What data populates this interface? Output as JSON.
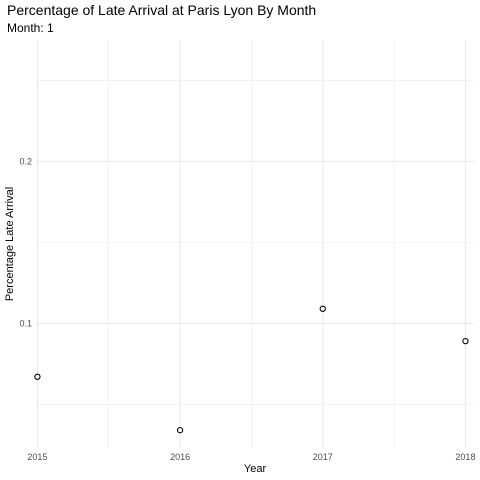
{
  "chart_data": {
    "type": "scatter",
    "title": "Percentage of Late Arrival at Paris Lyon By Month",
    "subtitle": "Month: 1",
    "xlabel": "Year",
    "ylabel": "Percentage Late Arrival",
    "x": [
      2015,
      2016,
      2017,
      2018
    ],
    "y": [
      0.067,
      0.034,
      0.109,
      0.089
    ],
    "x_ticks": [
      "2015",
      "2016",
      "2017",
      "2018"
    ],
    "y_ticks": [
      0.1,
      0.2
    ],
    "y_tick_labels": [
      "0.1",
      "0.2"
    ],
    "xlim": [
      2014.99,
      2018.06
    ],
    "ylim": [
      0.023,
      0.275
    ],
    "grid": true,
    "legend": "none",
    "colors": {
      "grid": "#ebebeb",
      "point": "#000000",
      "point_fill": "#ffffff"
    }
  }
}
